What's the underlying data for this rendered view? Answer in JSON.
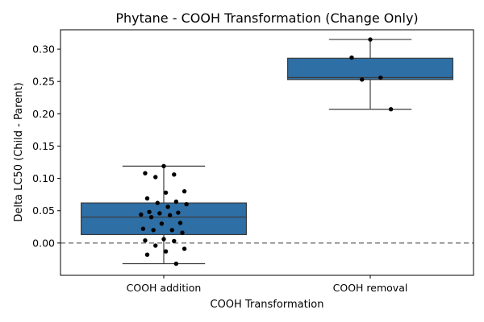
{
  "chart_data": {
    "type": "box",
    "title": "Phytane - COOH Transformation (Change Only)",
    "xlabel": "COOH Transformation",
    "ylabel": "Delta LC50 (Child - Parent)",
    "categories": [
      "COOH addition",
      "COOH removal"
    ],
    "ylim": [
      -0.05,
      0.33
    ],
    "yticks": [
      0.0,
      0.05,
      0.1,
      0.15,
      0.2,
      0.25,
      0.3
    ],
    "ytick_labels": [
      "0.00",
      "0.05",
      "0.10",
      "0.15",
      "0.20",
      "0.25",
      "0.30"
    ],
    "reference_line": {
      "y": 0,
      "style": "dashed",
      "color": "#808080"
    },
    "grid": false,
    "box_color": "#2e6fa6",
    "box_edge_color": "#3c3c3c",
    "point_color": "#000000",
    "boxes": [
      {
        "category": "COOH addition",
        "whisker_low": -0.032,
        "q1": 0.013,
        "median": 0.04,
        "q3": 0.062,
        "whisker_high": 0.119,
        "points": [
          0.119,
          0.108,
          0.106,
          0.102,
          0.08,
          0.078,
          0.069,
          0.064,
          0.062,
          0.06,
          0.056,
          0.048,
          0.047,
          0.046,
          0.044,
          0.043,
          0.04,
          0.031,
          0.03,
          0.022,
          0.02,
          0.02,
          0.016,
          0.006,
          0.004,
          0.003,
          -0.004,
          -0.009,
          -0.013,
          -0.018,
          -0.032
        ]
      },
      {
        "category": "COOH removal",
        "whisker_low": 0.207,
        "q1": 0.253,
        "median": 0.256,
        "q3": 0.286,
        "whisker_high": 0.315,
        "points": [
          0.315,
          0.287,
          0.256,
          0.253,
          0.207
        ]
      }
    ]
  }
}
